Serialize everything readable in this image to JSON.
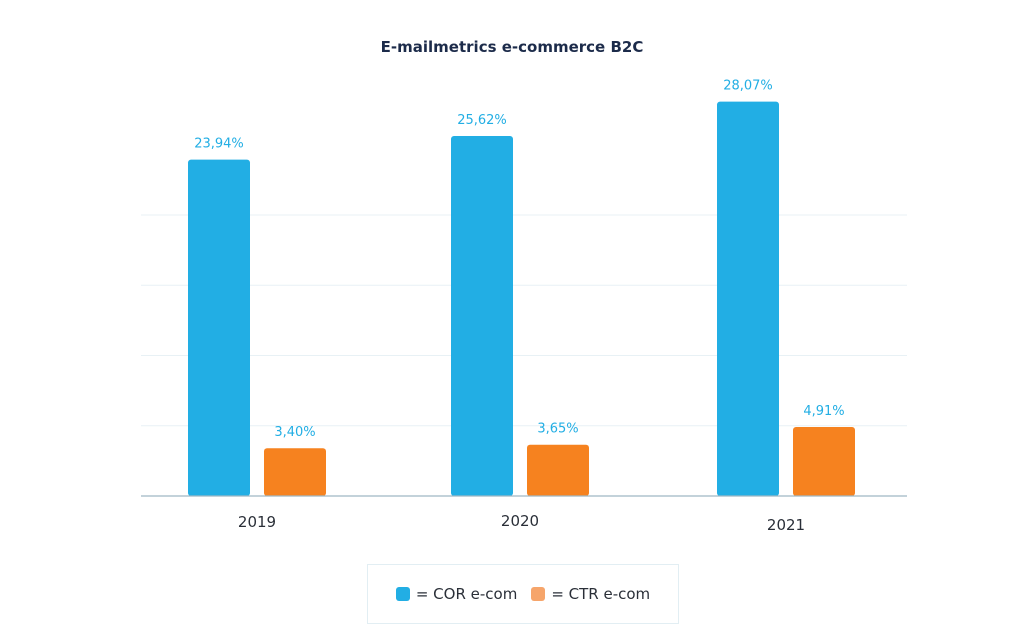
{
  "chart_data": {
    "type": "bar",
    "title": "E-mailmetrics e-commerce B2C",
    "categories": [
      "2019",
      "2020",
      "2021"
    ],
    "series": [
      {
        "name": "COR e-com",
        "values": [
          23.94,
          25.62,
          28.07
        ],
        "labels": [
          "23,94%",
          "25,62%",
          "28,07%"
        ],
        "color": "#22aee4"
      },
      {
        "name": "CTR e-com",
        "values": [
          3.4,
          3.65,
          4.91
        ],
        "labels": [
          "3,40%",
          "3,65%",
          "4,91%"
        ],
        "color": "#f6821f"
      }
    ],
    "ylim": [
      0,
      30
    ],
    "label_color": "#22aee4",
    "grid": true,
    "legend_position": "bottom-center",
    "legend": [
      {
        "label": "= COR e-com",
        "color": "#22aee4"
      },
      {
        "label": "= CTR e-com",
        "color": "#f6a56b"
      }
    ]
  }
}
